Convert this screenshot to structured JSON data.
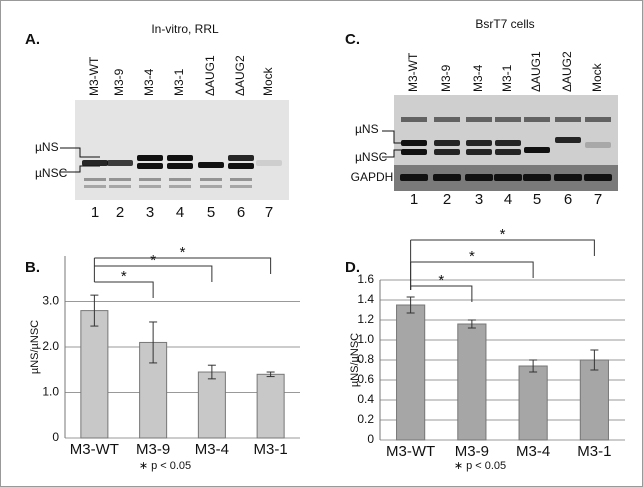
{
  "gels": [
    {
      "panel": "A.",
      "title": "In-vitro, RRL",
      "lanes": [
        "M3-WT",
        "M3-9",
        "M3-4",
        "M3-1",
        "ΔAUG1",
        "ΔAUG2",
        "Mock"
      ],
      "lane_numbers": [
        "1",
        "2",
        "3",
        "4",
        "5",
        "6",
        "7"
      ],
      "band_labels": [
        "µNS",
        "µNSC"
      ]
    },
    {
      "panel": "C.",
      "title": "BsrT7 cells",
      "lanes": [
        "M3-WT",
        "M3-9",
        "M3-4",
        "M3-1",
        "ΔAUG1",
        "ΔAUG2",
        "Mock"
      ],
      "lane_numbers": [
        "1",
        "2",
        "3",
        "4",
        "5",
        "6",
        "7"
      ],
      "band_labels": [
        "µNS",
        "µNSC",
        "GAPDH"
      ]
    }
  ],
  "chart_data": [
    {
      "type": "bar",
      "panel": "B.",
      "y_label": "µNS/µNSC",
      "categories": [
        "M3-WT",
        "M3-9",
        "M3-4",
        "M3-1"
      ],
      "series": [
        {
          "color": "#c8c8c8",
          "values": [
            2.8,
            2.1,
            1.45,
            1.4
          ],
          "errors": [
            0.34,
            0.45,
            0.15,
            0.05
          ]
        }
      ],
      "ylim": [
        0,
        4
      ],
      "yticks": [
        0,
        {
          "value": 1,
          "label": "1.0"
        },
        {
          "value": 2,
          "label": "2.0"
        },
        {
          "value": 3,
          "label": "3.0"
        }
      ],
      "grid": true,
      "significance_labels": [
        "*",
        "*",
        "*"
      ],
      "note": "∗ p < 0.05"
    },
    {
      "type": "bar",
      "panel": "D.",
      "y_label": "µNS/µNSC",
      "categories": [
        "M3-WT",
        "M3-9",
        "M3-4",
        "M3-1"
      ],
      "series": [
        {
          "color": "#a6a6a6",
          "values": [
            1.35,
            1.16,
            0.74,
            0.8
          ],
          "errors": [
            0.08,
            0.04,
            0.06,
            0.1
          ]
        }
      ],
      "ylim": [
        0,
        1.6
      ],
      "yticks": [
        0,
        0.2,
        0.4,
        0.6,
        0.8,
        {
          "value": 1,
          "label": "1.0"
        },
        1.2,
        1.4,
        1.6
      ],
      "grid": true,
      "significance_labels": [
        "*",
        "*",
        "*"
      ],
      "note": "∗ p < 0.05"
    }
  ]
}
